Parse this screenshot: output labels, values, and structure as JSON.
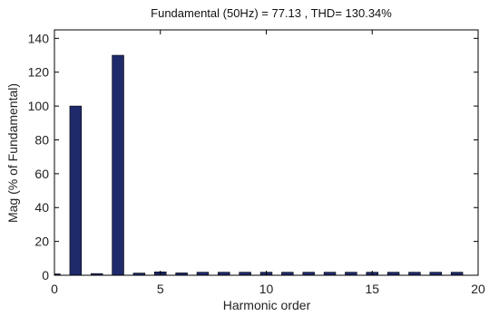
{
  "chart_data": {
    "type": "bar",
    "title": "Fundamental (50Hz) = 77.13 , THD= 130.34%",
    "xlabel": "Harmonic order",
    "ylabel": "Mag (% of Fundamental)",
    "xlim": [
      0,
      20
    ],
    "ylim": [
      0,
      145
    ],
    "xticks": [
      0,
      5,
      10,
      15,
      20
    ],
    "yticks": [
      0,
      20,
      40,
      60,
      80,
      100,
      120,
      140
    ],
    "grid": false,
    "bar_color": "#1f2a6b",
    "x": [
      0,
      1,
      2,
      3,
      4,
      5,
      6,
      7,
      8,
      9,
      10,
      11,
      12,
      13,
      14,
      15,
      16,
      17,
      18,
      19
    ],
    "values": [
      0.8,
      100,
      1.0,
      130,
      1.3,
      2.0,
      1.4,
      1.8,
      1.8,
      1.8,
      1.8,
      1.8,
      1.8,
      1.8,
      1.8,
      1.8,
      1.8,
      1.8,
      1.8,
      1.8
    ]
  }
}
